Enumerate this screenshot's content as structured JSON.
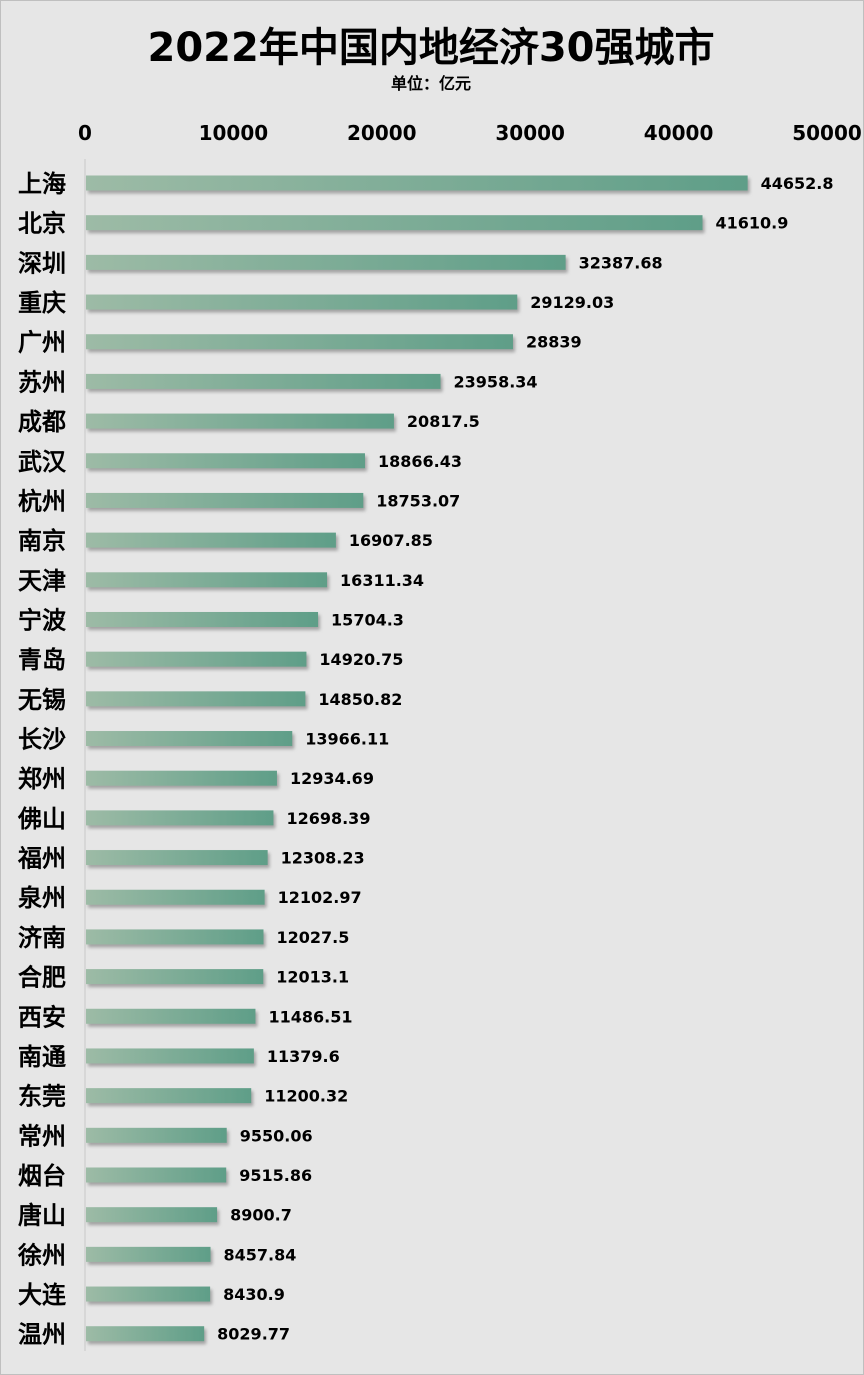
{
  "chart_data": {
    "type": "bar",
    "orientation": "horizontal",
    "title": "2022年中国内地经济30强城市",
    "subtitle": "单位：亿元",
    "xlim": [
      0,
      50000
    ],
    "x_ticks": [
      "0",
      "10000",
      "20000",
      "30000",
      "40000",
      "50000"
    ],
    "x_axis_position": "top",
    "grid": false,
    "categories": [
      "上海",
      "北京",
      "深圳",
      "重庆",
      "广州",
      "苏州",
      "成都",
      "武汉",
      "杭州",
      "南京",
      "天津",
      "宁波",
      "青岛",
      "无锡",
      "长沙",
      "郑州",
      "佛山",
      "福州",
      "泉州",
      "济南",
      "合肥",
      "西安",
      "南通",
      "东莞",
      "常州",
      "烟台",
      "唐山",
      "徐州",
      "大连",
      "温州"
    ],
    "values": [
      44652.8,
      41610.9,
      32387.68,
      29129.03,
      28839,
      23958.34,
      20817.5,
      18866.43,
      18753.07,
      16907.85,
      16311.34,
      15704.3,
      14920.75,
      14850.82,
      13966.11,
      12934.69,
      12698.39,
      12308.23,
      12102.97,
      12027.5,
      12013.1,
      11486.51,
      11379.6,
      11200.32,
      9550.06,
      9515.86,
      8900.7,
      8457.84,
      8430.9,
      8029.77
    ],
    "value_labels": [
      "44652.8",
      "41610.9",
      "32387.68",
      "29129.03",
      "28839",
      "23958.34",
      "20817.5",
      "18866.43",
      "18753.07",
      "16907.85",
      "16311.34",
      "15704.3",
      "14920.75",
      "14850.82",
      "13966.11",
      "12934.69",
      "12698.39",
      "12308.23",
      "12102.97",
      "12027.5",
      "12013.1",
      "11486.51",
      "11379.6",
      "11200.32",
      "9550.06",
      "9515.86",
      "8900.7",
      "8457.84",
      "8430.9",
      "8029.77"
    ]
  },
  "colors": {
    "background": "#e6e6e6",
    "bar_start": "#9dbba6",
    "bar_end": "#5f9e88",
    "bar_shadow": "#a9a9a9",
    "axis_line": "#c8c8c8",
    "text": "#000000"
  }
}
